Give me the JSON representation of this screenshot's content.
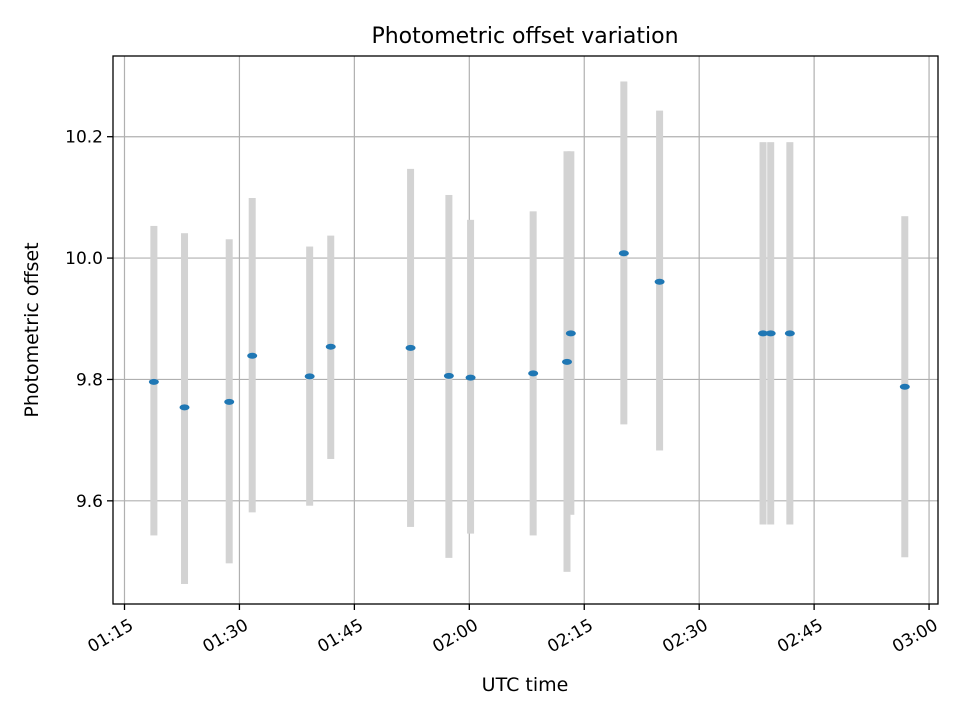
{
  "chart_data": {
    "type": "scatter",
    "title": "Photometric offset variation",
    "xlabel": "UTC time",
    "ylabel": "Photometric offset",
    "xlim": [
      "01:13:30",
      "03:01:10"
    ],
    "ylim": [
      9.43,
      10.333
    ],
    "x_ticks": [
      "01:15",
      "01:30",
      "01:45",
      "02:00",
      "02:15",
      "02:30",
      "02:45",
      "03:00"
    ],
    "y_ticks": [
      9.6,
      9.8,
      10.0,
      10.2
    ],
    "y_tick_labels": [
      "9.6",
      "9.8",
      "10.0",
      "10.2"
    ],
    "grid": true,
    "marker_color": "#1f77b4",
    "errorbar_color": "#d3d3d3",
    "points": [
      {
        "time": "01:18:50",
        "y": 9.796,
        "err_low": 9.543,
        "err_high": 10.053
      },
      {
        "time": "01:22:50",
        "y": 9.754,
        "err_low": 9.463,
        "err_high": 10.041
      },
      {
        "time": "01:28:40",
        "y": 9.763,
        "err_low": 9.497,
        "err_high": 10.031
      },
      {
        "time": "01:31:40",
        "y": 9.839,
        "err_low": 9.581,
        "err_high": 10.099
      },
      {
        "time": "01:39:10",
        "y": 9.805,
        "err_low": 9.592,
        "err_high": 10.019
      },
      {
        "time": "01:41:55",
        "y": 9.854,
        "err_low": 9.669,
        "err_high": 10.037
      },
      {
        "time": "01:52:20",
        "y": 9.852,
        "err_low": 9.557,
        "err_high": 10.147
      },
      {
        "time": "01:57:20",
        "y": 9.806,
        "err_low": 9.506,
        "err_high": 10.104
      },
      {
        "time": "02:00:10",
        "y": 9.803,
        "err_low": 9.546,
        "err_high": 10.063
      },
      {
        "time": "02:08:20",
        "y": 9.81,
        "err_low": 9.543,
        "err_high": 10.077
      },
      {
        "time": "02:12:45",
        "y": 9.829,
        "err_low": 9.483,
        "err_high": 10.176
      },
      {
        "time": "02:13:15",
        "y": 9.876,
        "err_low": 9.577,
        "err_high": 10.176
      },
      {
        "time": "02:20:10",
        "y": 10.008,
        "err_low": 9.726,
        "err_high": 10.291
      },
      {
        "time": "02:24:50",
        "y": 9.961,
        "err_low": 9.683,
        "err_high": 10.243
      },
      {
        "time": "02:38:20",
        "y": 9.876,
        "err_low": 9.561,
        "err_high": 10.191
      },
      {
        "time": "02:39:20",
        "y": 9.876,
        "err_low": 9.561,
        "err_high": 10.191
      },
      {
        "time": "02:41:50",
        "y": 9.876,
        "err_low": 9.561,
        "err_high": 10.191
      },
      {
        "time": "02:56:50",
        "y": 9.788,
        "err_low": 9.507,
        "err_high": 10.069
      }
    ]
  }
}
